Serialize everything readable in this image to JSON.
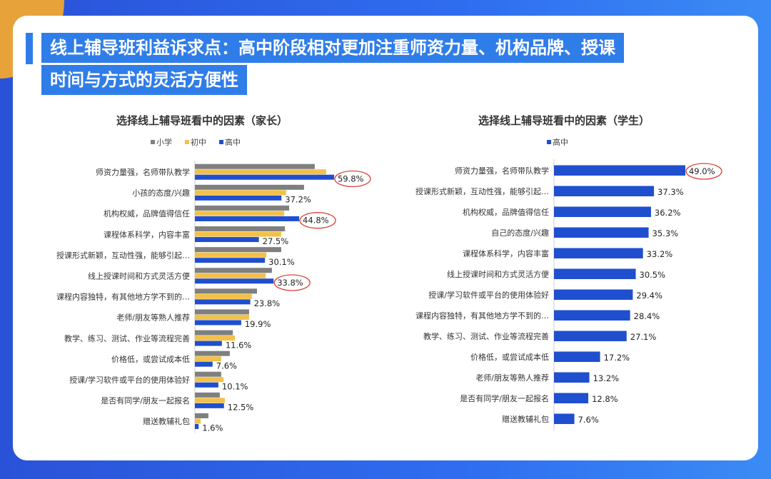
{
  "title": {
    "line1": "线上辅导班利益诉求点：高中阶段相对更加注重师资力量、机构品牌、授课",
    "line2": "时间与方式的灵活方便性"
  },
  "colors": {
    "primary": "#7f7f7f",
    "middle": "#f2c14a",
    "high": "#1f4fcf",
    "circle": "#d9443b",
    "band": "#2f7de8"
  },
  "chart_data": [
    {
      "type": "bar",
      "orientation": "horizontal",
      "title": "选择线上辅导班看中的因素（家长）",
      "legend_position": "top",
      "categories": [
        "师资力量强，名师带队教学",
        "小孩的态度/兴趣",
        "机构权威，品牌值得信任",
        "课程体系科学，内容丰富",
        "授课形式新颖，互动性强，能够引起…",
        "线上授课时间和方式灵活方便",
        "课程内容独特，有其他地方学不到的…",
        "老师/朋友等熟人推荐",
        "教学、练习、测试、作业等流程完善",
        "价格低，或尝试成本低",
        "授课/学习软件或平台的使用体验好",
        "是否有同学/朋友一起报名",
        "赠送教辅礼包"
      ],
      "series": [
        {
          "name": "小学",
          "values": [
            51.5,
            46.9,
            40.5,
            38.7,
            37.1,
            33.1,
            26.7,
            23.3,
            16.3,
            15.0,
            11.3,
            10.7,
            5.8
          ]
        },
        {
          "name": "初中",
          "values": [
            56.4,
            39.2,
            38.4,
            37.1,
            30.7,
            30.4,
            24.5,
            23.3,
            17.2,
            11.3,
            12.3,
            12.9,
            2.5
          ]
        },
        {
          "name": "高中",
          "values": [
            59.8,
            37.2,
            44.8,
            27.5,
            30.1,
            33.8,
            23.8,
            19.9,
            11.6,
            7.6,
            10.1,
            12.5,
            1.6
          ]
        }
      ],
      "data_labels": [
        "59.8%",
        "37.2%",
        "44.8%",
        "27.5%",
        "30.1%",
        "33.8%",
        "23.8%",
        "19.9%",
        "11.6%",
        "7.6%",
        "10.1%",
        "12.5%",
        "1.6%"
      ],
      "highlighted": [
        0,
        2,
        5
      ]
    },
    {
      "type": "bar",
      "orientation": "horizontal",
      "title": "选择线上辅导班看中的因素（学生）",
      "legend_position": "top",
      "categories": [
        "师资力量强，名师带队教学",
        "授课形式新颖，互动性强，能够引起…",
        "机构权威，品牌值得信任",
        "自己的态度/兴趣",
        "课程体系科学，内容丰富",
        "线上授课时间和方式灵活方便",
        "授课/学习软件或平台的使用体验好",
        "课程内容独特，有其他地方学不到的…",
        "教学、练习、测试、作业等流程完善",
        "价格低，或尝试成本低",
        "老师/朋友等熟人推荐",
        "是否有同学/朋友一起报名",
        "赠送教辅礼包"
      ],
      "series": [
        {
          "name": "高中",
          "values": [
            49.0,
            37.3,
            36.2,
            35.3,
            33.2,
            30.5,
            29.4,
            28.4,
            27.1,
            17.2,
            13.2,
            12.8,
            7.6
          ]
        }
      ],
      "data_labels": [
        "49.0%",
        "37.3%",
        "36.2%",
        "35.3%",
        "33.2%",
        "30.5%",
        "29.4%",
        "28.4%",
        "27.1%",
        "17.2%",
        "13.2%",
        "12.8%",
        "7.6%"
      ],
      "highlighted": [
        0
      ]
    }
  ]
}
